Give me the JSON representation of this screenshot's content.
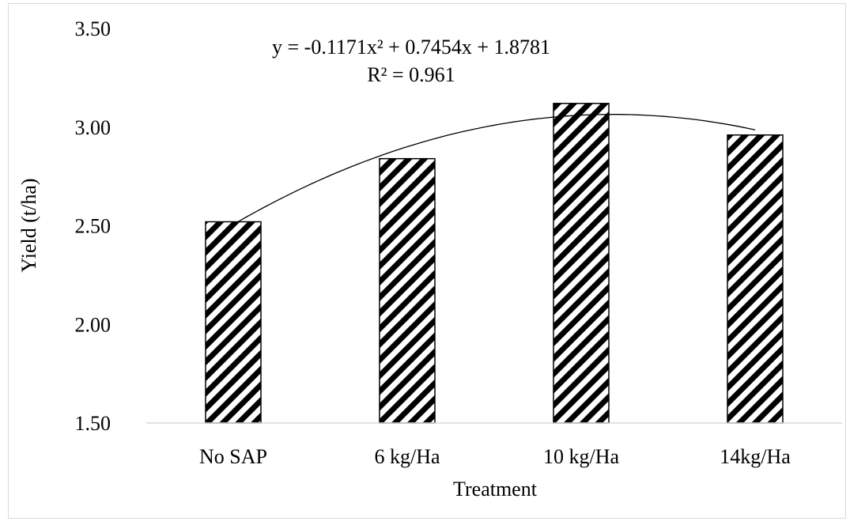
{
  "chart_data": {
    "type": "bar",
    "title": "",
    "xlabel": "Treatment",
    "ylabel": "Yield (t/ha)",
    "categories": [
      "No SAP",
      "6 kg/Ha",
      "10 kg/Ha",
      "14kg/Ha"
    ],
    "values": [
      2.52,
      2.84,
      3.12,
      2.96
    ],
    "ylim": [
      1.5,
      3.5
    ],
    "yticks": [
      1.5,
      2.0,
      2.5,
      3.0,
      3.5
    ],
    "ytick_labels": [
      "1.50",
      "2.00",
      "2.50",
      "3.00",
      "3.50"
    ],
    "grid": false,
    "legend": "none",
    "bar_fill": "diagonal-hatch",
    "bar_color": "#000000",
    "trendline": {
      "type": "polynomial",
      "order": 2,
      "coefficients": [
        -0.1171,
        0.7454,
        1.8781
      ],
      "equation_label": "y = -0.1171x² + 0.7454x + 1.8781",
      "r2_label": "R² = 0.961"
    }
  }
}
